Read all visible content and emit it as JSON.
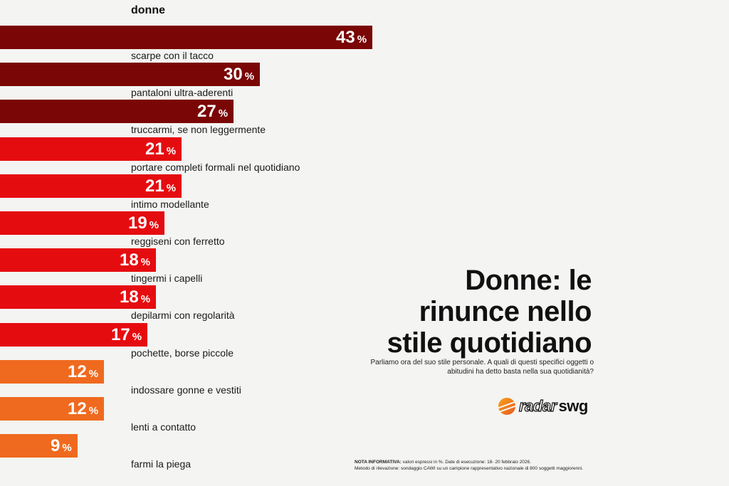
{
  "chart_data": {
    "type": "bar",
    "orientation": "horizontal",
    "series_title": "donne",
    "unit": "%",
    "categories": [
      "scarpe con il tacco",
      "pantaloni ultra-aderenti",
      "truccarmi, se non leggermente",
      "portare completi formali nel quotidiano",
      "intimo modellante",
      "reggiseni con ferretto",
      "tingermi i capelli",
      "depilarmi con regolarità",
      "pochette, borse piccole",
      "indossare gonne e vestiti",
      "lenti a contatto",
      "farmi la piega"
    ],
    "values": [
      43,
      30,
      27,
      21,
      21,
      19,
      18,
      18,
      17,
      12,
      12,
      9
    ],
    "colors": [
      "#7a0606",
      "#7a0606",
      "#7a0606",
      "#e50c10",
      "#e50c10",
      "#e50c10",
      "#e50c10",
      "#e50c10",
      "#e50c10",
      "#ef6a1f",
      "#ef6a1f",
      "#ef6a1f"
    ],
    "grid": false,
    "legend": "none"
  },
  "headline": "Donne: le\nrinunce nello\nstile quotidiano",
  "question": "Parliamo ora del suo stile personale. A quali di questi specifici oggetti o abitudini ha detto basta nella sua quotidianità?",
  "logo": {
    "mark_icon": "radar-swg-logo-icon",
    "word1": "radar",
    "word2": "swg"
  },
  "note": {
    "label": "NOTA INFORMATIVA:",
    "line1": "valori espressi in %. Date di esecuzione: 18- 20 febbraio 2026.",
    "line2": "Metodo di rilevazione: sondaggio CAWI su un campione rappresentativo nazionale di 800 soggetti maggiorenni."
  }
}
